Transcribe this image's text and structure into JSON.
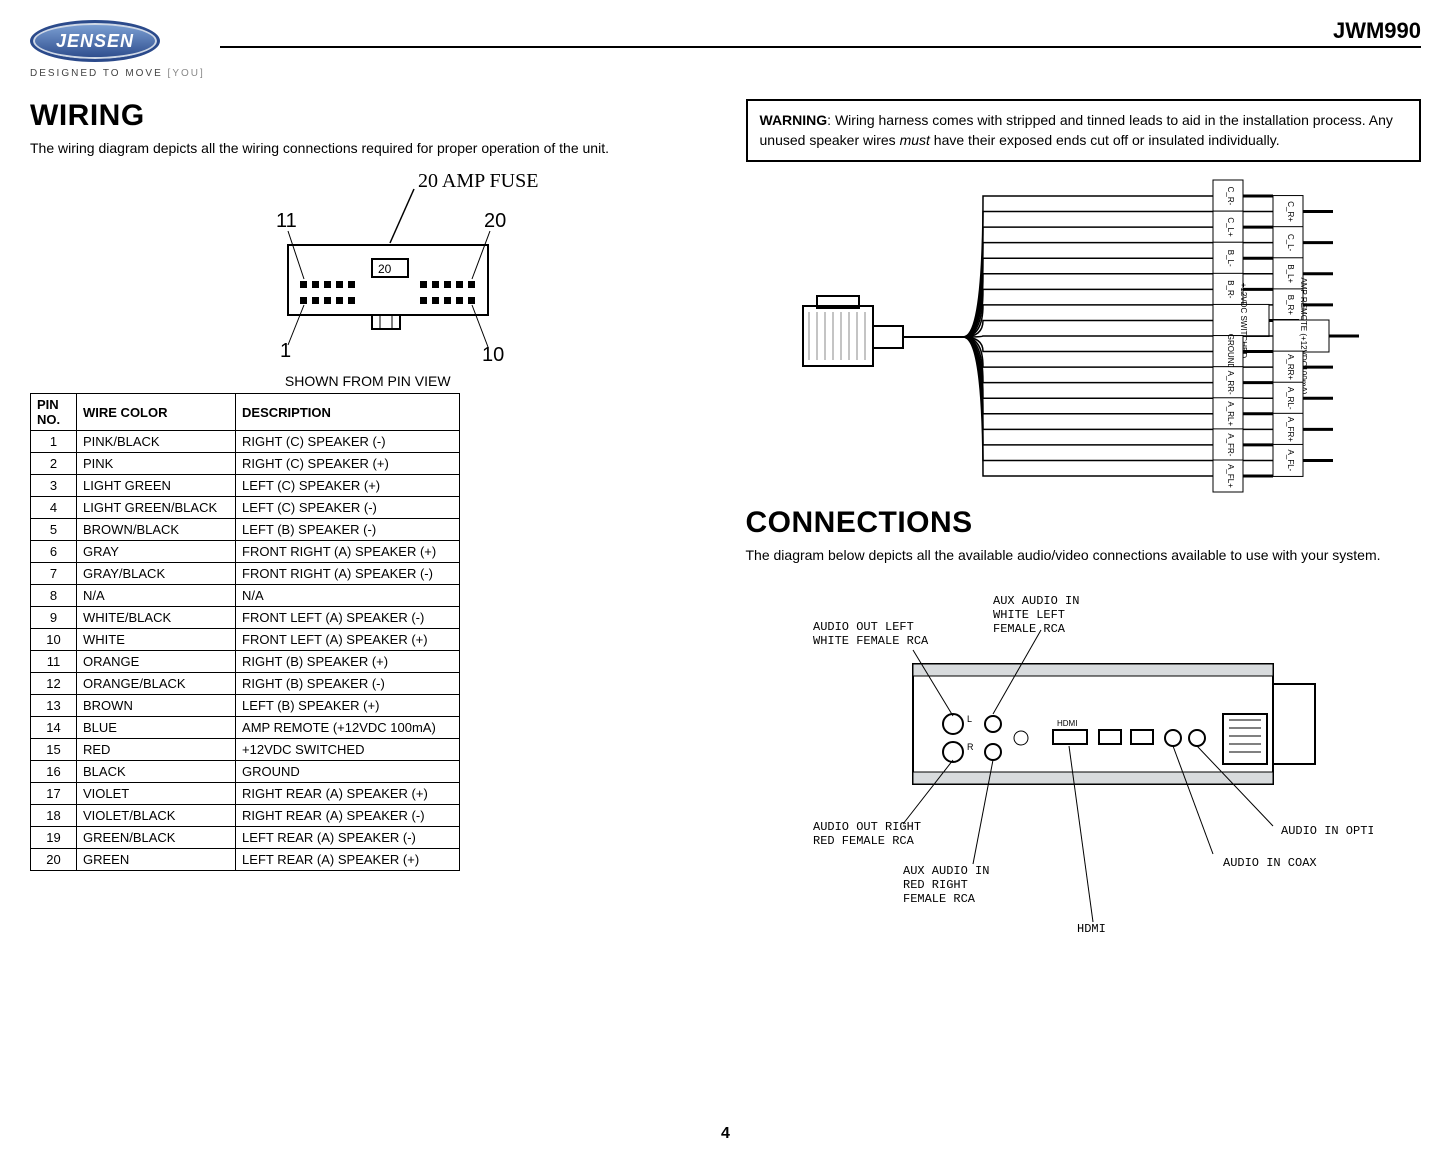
{
  "header": {
    "brand": "JENSEN",
    "tagline_left": "DESIGNED TO MOVE",
    "tagline_right": "[YOU]",
    "model": "JWM990"
  },
  "wiring": {
    "heading": "WIRING",
    "intro": "The wiring diagram depicts all the wiring connections required for proper operation of the unit.",
    "fuse_label": "20  AMP FUSE",
    "fuse_value": "20",
    "corners": {
      "tl": "11",
      "tr": "20",
      "bl": "1",
      "br": "10"
    },
    "caption": "SHOWN FROM PIN VIEW",
    "table": {
      "columns": [
        "PIN NO.",
        "WIRE COLOR",
        "DESCRIPTION"
      ],
      "rows": [
        [
          "1",
          "PINK/BLACK",
          "RIGHT (C) SPEAKER (-)"
        ],
        [
          "2",
          "PINK",
          "RIGHT (C) SPEAKER (+)"
        ],
        [
          "3",
          "LIGHT GREEN",
          "LEFT (C) SPEAKER (+)"
        ],
        [
          "4",
          "LIGHT GREEN/BLACK",
          "LEFT (C) SPEAKER (-)"
        ],
        [
          "5",
          "BROWN/BLACK",
          "LEFT (B) SPEAKER (-)"
        ],
        [
          "6",
          "GRAY",
          "FRONT RIGHT (A) SPEAKER (+)"
        ],
        [
          "7",
          "GRAY/BLACK",
          "FRONT RIGHT (A) SPEAKER (-)"
        ],
        [
          "8",
          "N/A",
          "N/A"
        ],
        [
          "9",
          "WHITE/BLACK",
          "FRONT LEFT (A) SPEAKER (-)"
        ],
        [
          "10",
          "WHITE",
          "FRONT LEFT (A) SPEAKER (+)"
        ],
        [
          "11",
          "ORANGE",
          "RIGHT (B) SPEAKER (+)"
        ],
        [
          "12",
          "ORANGE/BLACK",
          "RIGHT (B) SPEAKER (-)"
        ],
        [
          "13",
          "BROWN",
          "LEFT (B) SPEAKER (+)"
        ],
        [
          "14",
          "BLUE",
          "AMP REMOTE (+12VDC 100mA)"
        ],
        [
          "15",
          "RED",
          "+12VDC SWITCHED"
        ],
        [
          "16",
          "BLACK",
          "GROUND"
        ],
        [
          "17",
          "VIOLET",
          "RIGHT REAR (A) SPEAKER (+)"
        ],
        [
          "18",
          "VIOLET/BLACK",
          "RIGHT REAR (A) SPEAKER (-)"
        ],
        [
          "19",
          "GREEN/BLACK",
          "LEFT REAR (A) SPEAKER (-)"
        ],
        [
          "20",
          "GREEN",
          "LEFT REAR (A) SPEAKER (+)"
        ]
      ]
    }
  },
  "warning": {
    "label": "WARNING",
    "text_before_must": ": Wiring harness comes with stripped and tinned leads to aid in the installation process. Any unused speaker wires ",
    "must": "must",
    "text_after_must": " have their exposed ends cut off or insulated individually."
  },
  "harness_labels": [
    "C_R-",
    "C_R+",
    "C_L+",
    "C_L-",
    "B_L-",
    "B_L+",
    "B_R-",
    "B_R+",
    "+12VDC SWITCHED",
    "AMP REMOTE (+12VDC100mA)",
    "GROUND",
    "A_RR+",
    "A_RR-",
    "A_RL-",
    "A_RL+",
    "A_FR+",
    "A_FR-",
    "A_FL-",
    "A_FL+"
  ],
  "connections": {
    "heading": "CONNECTIONS",
    "intro": "The diagram below depicts all the available audio/video connections available to use with your system.",
    "labels": {
      "aux_in_left": "AUX  AUDIO  IN\nWHITE  LEFT\nFEMALE  RCA",
      "audio_out_left": "AUDIO  OUT  LEFT\nWHITE  FEMALE  RCA",
      "audio_out_right": "AUDIO  OUT  RIGHT\nRED  FEMALE  RCA",
      "aux_in_right": "AUX  AUDIO  IN\nRED  RIGHT\nFEMALE  RCA",
      "audio_in_optic": "AUDIO  IN  OPTIC",
      "audio_in_coax": "AUDIO  IN  COAX",
      "hdmi": "HDMI"
    }
  },
  "page_number": "4",
  "colors": {
    "text": "#000000",
    "brand_blue": "#2b4a8b",
    "brand_light": "#7fa3d6",
    "grey": "#9aa2a8",
    "bg": "#ffffff"
  }
}
